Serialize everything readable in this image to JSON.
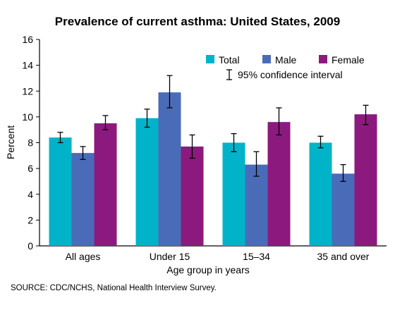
{
  "chart_data": {
    "type": "bar",
    "title": "Prevalence of current asthma: United States, 2009",
    "xlabel": "Age group in years",
    "ylabel": "Percent",
    "ylim": [
      0,
      16
    ],
    "yticks": [
      0,
      2,
      4,
      6,
      8,
      10,
      12,
      14,
      16
    ],
    "categories": [
      "All ages",
      "Under 15",
      "15–34",
      "35 and over"
    ],
    "series": [
      {
        "name": "Total",
        "color": "#00b3c8",
        "values": [
          8.4,
          9.9,
          8.0,
          8.0
        ],
        "ci": [
          [
            8.0,
            8.8
          ],
          [
            9.2,
            10.6
          ],
          [
            7.3,
            8.7
          ],
          [
            7.6,
            8.5
          ]
        ]
      },
      {
        "name": "Male",
        "color": "#4a6cb8",
        "values": [
          7.2,
          11.9,
          6.3,
          5.6
        ],
        "ci": [
          [
            6.7,
            7.7
          ],
          [
            10.7,
            13.2
          ],
          [
            5.4,
            7.3
          ],
          [
            5.0,
            6.3
          ]
        ]
      },
      {
        "name": "Female",
        "color": "#8c1a7e",
        "values": [
          9.5,
          7.7,
          9.6,
          10.2
        ],
        "ci": [
          [
            9.0,
            10.1
          ],
          [
            6.8,
            8.6
          ],
          [
            8.6,
            10.7
          ],
          [
            9.4,
            10.9
          ]
        ]
      }
    ],
    "ci_label": "95% confidence interval",
    "legend_position": "top-right",
    "grid": false
  },
  "source_note": "SOURCE: CDC/NCHS, National Health Interview Survey."
}
